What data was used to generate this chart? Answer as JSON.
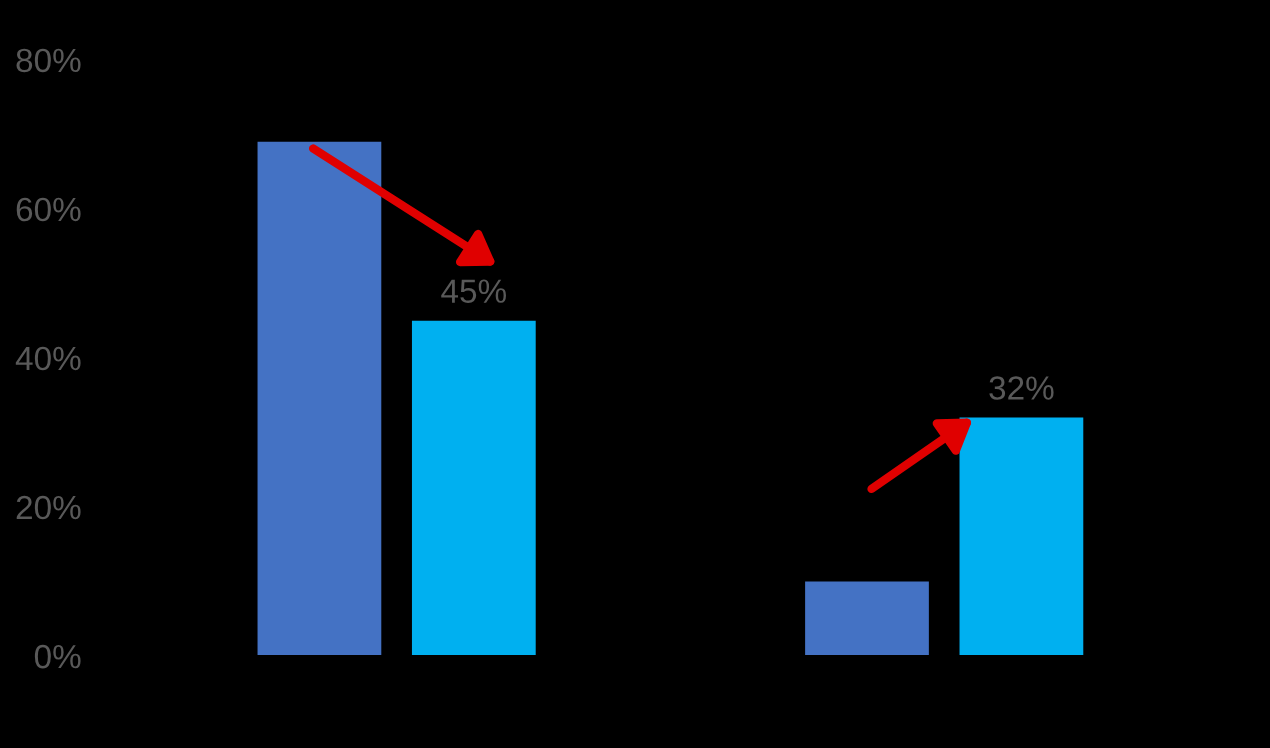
{
  "chart_data": {
    "type": "bar",
    "categories": [
      null,
      null
    ],
    "series": [
      {
        "color": "#4472c4",
        "values": [
          69,
          10
        ]
      },
      {
        "color": "#00b0f0",
        "values": [
          45,
          32
        ],
        "value_labels": [
          "45%",
          "32%"
        ]
      }
    ],
    "ylim": [
      0,
      80
    ],
    "yticks": [
      {
        "value": 0,
        "label": "0%"
      },
      {
        "value": 20,
        "label": "20%"
      },
      {
        "value": 40,
        "label": "40%"
      },
      {
        "value": 60,
        "label": "60%"
      },
      {
        "value": 80,
        "label": "80%"
      }
    ],
    "grid": false,
    "legend": false
  }
}
